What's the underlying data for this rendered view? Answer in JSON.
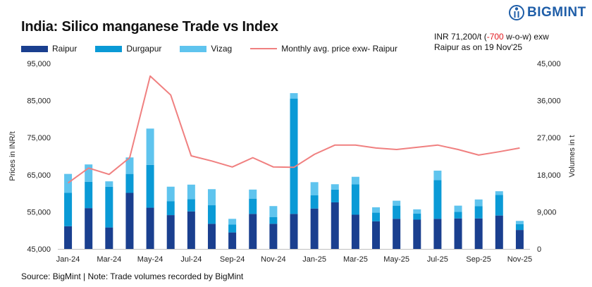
{
  "title": "India: Silico manganese Trade vs Index",
  "logo": {
    "text": "BIGMINT",
    "icon": "bigmint-logo-icon"
  },
  "legend": {
    "raipur": "Raipur",
    "durgapur": "Durgapur",
    "vizag": "Vizag",
    "line": "Monthly avg. price exw- Raipur"
  },
  "note": {
    "line1_pre": "INR 71,200/t (",
    "line1_change": "-700",
    "line1_post": " w-o-w) exw",
    "line2": "Raipur as on 19 Nov'25"
  },
  "source": "Source: BigMint | Note: Trade volumes recorded by BigMint",
  "colors": {
    "raipur": "#1a3f8f",
    "durgapur": "#0a9ad6",
    "vizag": "#5fc4ee",
    "line": "#f08080"
  },
  "chart_data": {
    "type": "bar",
    "stacked": true,
    "categories": [
      "Jan-24",
      "Feb-24",
      "Mar-24",
      "Apr-24",
      "May-24",
      "Jun-24",
      "Jul-24",
      "Aug-24",
      "Sep-24",
      "Oct-24",
      "Nov-24",
      "Dec-24",
      "Jan-25",
      "Feb-25",
      "Mar-25",
      "Apr-25",
      "May-25",
      "Jun-25",
      "Jul-25",
      "Aug-25",
      "Sep-25",
      "Oct-25",
      "Nov-25"
    ],
    "x_tick_labels": [
      "Jan-24",
      "",
      "Mar-24",
      "",
      "May-24",
      "",
      "Jul-24",
      "",
      "Sep-24",
      "",
      "Nov-24",
      "",
      "Jan-25",
      "",
      "Mar-25",
      "",
      "May-25",
      "",
      "Jul-25",
      "",
      "Sep-25",
      "",
      "Nov-25"
    ],
    "series": [
      {
        "name": "Raipur",
        "axis": "right",
        "values": [
          5500,
          9900,
          5200,
          13600,
          10000,
          8200,
          9100,
          6100,
          4000,
          8500,
          6100,
          8500,
          9800,
          11300,
          8300,
          6700,
          7300,
          7100,
          7300,
          7400,
          7400,
          8100,
          4600
        ]
      },
      {
        "name": "Durgapur",
        "axis": "right",
        "values": [
          8100,
          6400,
          9900,
          4600,
          10400,
          3400,
          3000,
          4500,
          1900,
          3700,
          1600,
          28000,
          3200,
          3100,
          7400,
          2100,
          3200,
          1500,
          9400,
          1600,
          3000,
          5000,
          1400
        ]
      },
      {
        "name": "Vizag",
        "axis": "right",
        "values": [
          4600,
          4200,
          1300,
          4000,
          8800,
          3500,
          3500,
          3900,
          1400,
          2200,
          2700,
          1300,
          3200,
          1300,
          1800,
          1300,
          1200,
          1000,
          2300,
          1500,
          1600,
          900,
          800
        ]
      },
      {
        "name": "Monthly avg. price exw- Raipur",
        "type": "line",
        "axis": "left",
        "values": [
          62800,
          66800,
          65100,
          69600,
          91600,
          86500,
          70100,
          68700,
          67100,
          69600,
          67100,
          67000,
          70500,
          73000,
          73000,
          72200,
          71800,
          72400,
          73000,
          71800,
          70300,
          71200,
          72200
        ]
      }
    ],
    "ylabel": "Prices in INR/t",
    "y2label": "Volumes in t",
    "ylim": [
      45000,
      95000
    ],
    "y2lim": [
      0,
      45000
    ],
    "y_ticks": [
      45000,
      55000,
      65000,
      75000,
      85000,
      95000
    ],
    "y2_ticks": [
      0,
      9000,
      18000,
      27000,
      36000,
      45000
    ],
    "y_tick_labels": [
      "45,000",
      "55,000",
      "65,000",
      "75,000",
      "85,000",
      "95,000"
    ],
    "y2_tick_labels": [
      "0",
      "9,000",
      "18,000",
      "27,000",
      "36,000",
      "45,000"
    ],
    "legend_position": "top-left",
    "grid": false
  }
}
